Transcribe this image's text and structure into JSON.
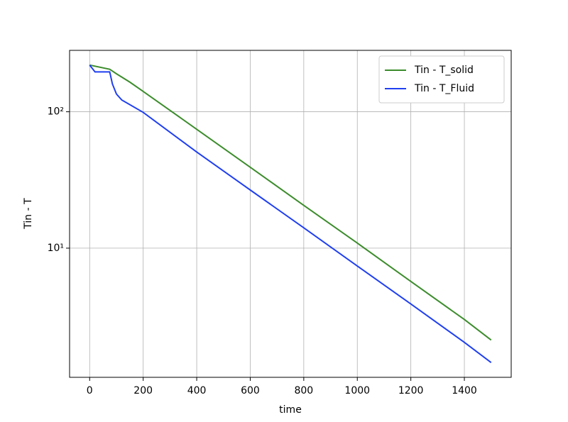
{
  "chart_data": {
    "type": "line",
    "xlabel": "time",
    "ylabel": "Tin - T",
    "xlim": [
      -75,
      1575
    ],
    "xticks": [
      0,
      200,
      400,
      600,
      800,
      1000,
      1200,
      1400
    ],
    "ylim": [
      1.13,
      282
    ],
    "log_y": true,
    "yticks": [
      {
        "value": 10,
        "label": "10¹"
      },
      {
        "value": 100,
        "label": "10²"
      }
    ],
    "grid": true,
    "legend": "upper right",
    "series": [
      {
        "name": "Tin - T_solid",
        "color": "#3c8c2c",
        "x": [
          0,
          75,
          100,
          150,
          200,
          400,
          600,
          800,
          1000,
          1200,
          1400,
          1500
        ],
        "values": [
          220,
          205,
          190,
          165,
          141,
          74.4,
          39.2,
          20.6,
          10.9,
          5.7,
          3.0,
          2.12
        ]
      },
      {
        "name": "Tin - T_Fluid",
        "color": "#1f3ff0",
        "x": [
          0,
          20,
          75,
          85,
          100,
          120,
          200,
          400,
          600,
          800,
          1000,
          1200,
          1400,
          1500
        ],
        "values": [
          220,
          196,
          196,
          160,
          135,
          122,
          99,
          50.7,
          26.7,
          14.1,
          7.4,
          3.9,
          2.04,
          1.45
        ]
      }
    ]
  }
}
